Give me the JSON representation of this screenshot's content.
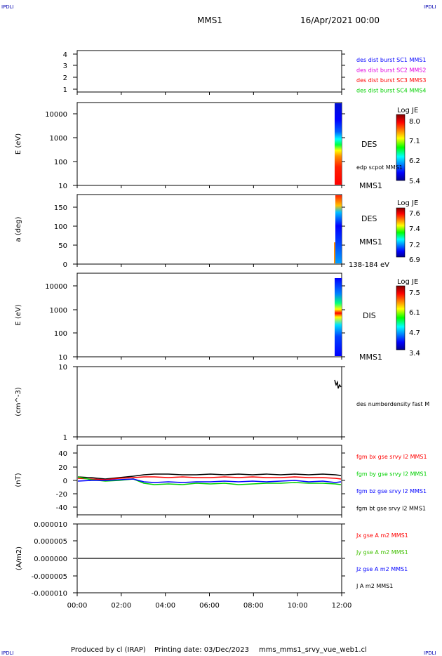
{
  "header": {
    "corner_tl": "IPDLI",
    "corner_tr": "IPDLI",
    "corner_bl": "IPDLI",
    "corner_br": "IPDLI",
    "spacecraft": "MMS1",
    "date": "16/Apr/2021 00:00"
  },
  "footer": {
    "produced": "Produced by cl (IRAP)",
    "printing": "Printing date: 03/Dec/2023",
    "file": "mms_mms1_srvy_vue_web1.cl"
  },
  "colors": {
    "blue": "#0000ff",
    "magenta": "#e000e0",
    "red": "#ff0000",
    "green": "#00d000",
    "black": "#000000"
  },
  "chart_data": [
    {
      "type": "line",
      "id": "burst",
      "ylim": [
        0.7,
        4.4
      ],
      "yticks": [
        "1",
        "2",
        "3",
        "4"
      ],
      "legend": [
        "des dist burst SC1 MMS1",
        "des dist burst SC2 MMS2",
        "des dist burst SC3 MMS3",
        "des dist burst SC4 MMS4"
      ]
    },
    {
      "type": "heatmap",
      "id": "des-energy",
      "ylabel": "E (eV)",
      "yscale": "log",
      "ylim": [
        10,
        30000
      ],
      "yticks": [
        "10000",
        "1000",
        "100",
        "10"
      ],
      "label": "DES",
      "overlay_label": "edp scpot MMS1",
      "spacecraft_label": "MMS1",
      "colorbar": {
        "title": "Log JE",
        "ticks": [
          "8.0",
          "7.1",
          "6.2",
          "5.4"
        ]
      }
    },
    {
      "type": "heatmap",
      "id": "des-pitch",
      "ylabel": "a (deg)",
      "ylim": [
        0,
        180
      ],
      "yticks": [
        "150",
        "100",
        "50",
        "0"
      ],
      "label": "DES",
      "spacecraft_label": "MMS1",
      "energy_range": "138-184 eV",
      "colorbar": {
        "title": "Log JE",
        "ticks": [
          "7.6",
          "7.4",
          "7.2",
          "6.9"
        ]
      }
    },
    {
      "type": "heatmap",
      "id": "dis-energy",
      "ylabel": "E (eV)",
      "yscale": "log",
      "ylim": [
        10,
        30000
      ],
      "yticks": [
        "10000",
        "1000",
        "100",
        "10"
      ],
      "label": "DIS",
      "spacecraft_label": "MMS1",
      "colorbar": {
        "title": "Log JE",
        "ticks": [
          "7.5",
          "6.1",
          "4.7",
          "3.4"
        ]
      }
    },
    {
      "type": "line",
      "id": "density",
      "ylabel": "(cm^-3)",
      "yscale": "log",
      "ylim": [
        1,
        10
      ],
      "yticks": [
        "10",
        "1"
      ],
      "legend": [
        "des numberdensity fast M"
      ]
    },
    {
      "type": "line",
      "id": "bfield",
      "ylabel": "(nT)",
      "ylim": [
        -50,
        50
      ],
      "yticks": [
        "40",
        "20",
        "0",
        "-20",
        "-40"
      ],
      "legend": [
        "fgm bx gse srvy l2 MMS1",
        "fgm by gse srvy l2 MMS1",
        "fgm bz gse srvy l2 MMS1",
        "fgm bt gse srvy l2 MMS1"
      ]
    },
    {
      "type": "line",
      "id": "current",
      "ylabel": "(A/m2)",
      "ylim": [
        -1e-05,
        1e-05
      ],
      "yticks": [
        "0.000010",
        "0.000005",
        "0.000000",
        "-0.000005",
        "-0.000010"
      ],
      "legend": [
        "Jx gse A m2 MMS1",
        "Jy gse A m2 MMS1",
        "Jz gse A m2 MMS1",
        "J A m2 MMS1"
      ],
      "xlim": [
        "00:00",
        "12:00"
      ],
      "xticks": [
        "00:00",
        "02:00",
        "04:00",
        "06:00",
        "08:00",
        "10:00",
        "12:00"
      ]
    }
  ]
}
